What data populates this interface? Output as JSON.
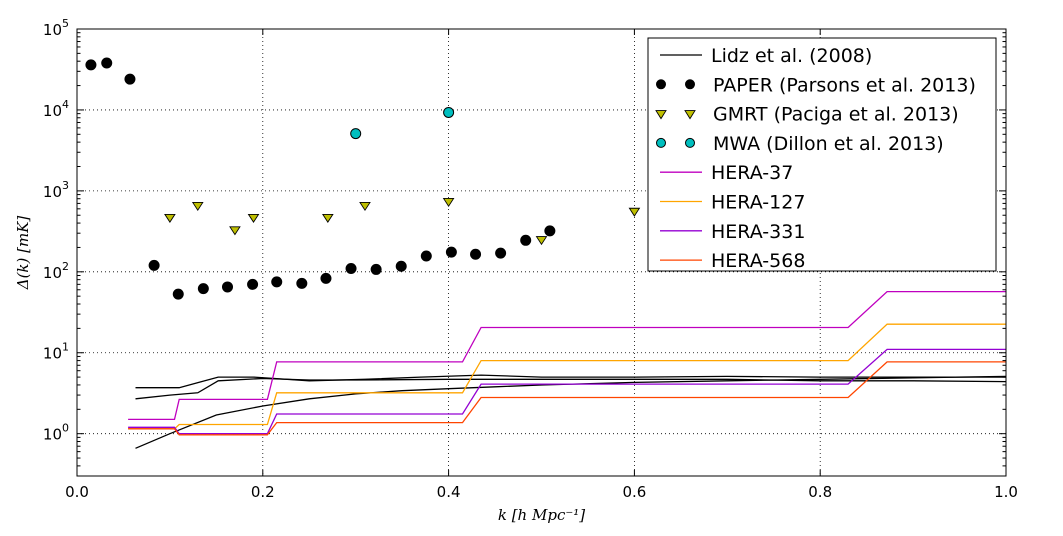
{
  "chart_data": {
    "type": "line",
    "title": "",
    "xlabel": "k [h Mpc⁻¹]",
    "ylabel": "Δ(k) [mK]",
    "xlim": [
      0.0,
      1.0
    ],
    "ylim": [
      0.3,
      100000
    ],
    "y_scale": "log",
    "grid": true,
    "legend_position": "top-right",
    "x_tick_labels": [
      "0.0",
      "0.2",
      "0.4",
      "0.6",
      "0.8",
      "1.0"
    ],
    "x_tick_values": [
      0.0,
      0.2,
      0.4,
      0.6,
      0.8,
      1.0
    ],
    "y_tick_values": [
      1,
      10,
      100,
      1000,
      10000,
      100000
    ],
    "y_tick_labels": [
      {
        "base": "10",
        "exp": "0"
      },
      {
        "base": "10",
        "exp": "1"
      },
      {
        "base": "10",
        "exp": "2"
      },
      {
        "base": "10",
        "exp": "3"
      },
      {
        "base": "10",
        "exp": "4"
      },
      {
        "base": "10",
        "exp": "5"
      }
    ],
    "series": [
      {
        "name": "Lidz et al. (2008)",
        "kind": "line",
        "color": "#000000",
        "lines": [
          {
            "x": [
              0.063,
              0.11,
              0.152,
              0.19,
              0.25,
              0.31,
              0.37,
              0.435,
              0.5,
              0.6,
              0.7,
              0.8,
              0.9,
              1.0
            ],
            "y": [
              3.7,
              3.7,
              5.0,
              5.0,
              4.5,
              4.7,
              5.0,
              5.3,
              5.0,
              5.0,
              5.1,
              5.0,
              5.0,
              5.0
            ]
          },
          {
            "x": [
              0.063,
              0.1,
              0.13,
              0.152,
              0.2,
              0.25,
              0.3,
              0.4,
              0.5,
              0.6,
              0.7,
              0.8,
              0.9,
              1.0
            ],
            "y": [
              2.7,
              3.0,
              3.2,
              4.5,
              4.8,
              4.6,
              4.6,
              4.7,
              4.7,
              4.7,
              4.7,
              4.5,
              4.5,
              4.4
            ]
          },
          {
            "x": [
              0.063,
              0.1,
              0.15,
              0.2,
              0.25,
              0.3,
              0.35,
              0.4,
              0.45,
              0.5,
              0.6,
              0.7,
              0.8,
              0.9,
              1.0
            ],
            "y": [
              0.66,
              1.0,
              1.7,
              2.2,
              2.7,
              3.1,
              3.4,
              3.6,
              3.8,
              4.0,
              4.3,
              4.5,
              4.7,
              4.9,
              5.1
            ]
          }
        ]
      },
      {
        "name": "PAPER (Parsons et al. 2013)",
        "kind": "points",
        "marker": "circle",
        "color": "#000000",
        "x": [
          0.015,
          0.032,
          0.057,
          0.083,
          0.109,
          0.136,
          0.162,
          0.189,
          0.215,
          0.242,
          0.268,
          0.295,
          0.322,
          0.349,
          0.376,
          0.403,
          0.429,
          0.456,
          0.483,
          0.509
        ],
        "y": [
          36000,
          38000,
          24000,
          120,
          53,
          62,
          65,
          70,
          75,
          72,
          83,
          110,
          107,
          117,
          157,
          175,
          165,
          170,
          245,
          320
        ]
      },
      {
        "name": "GMRT (Paciga et al. 2013)",
        "kind": "points",
        "marker": "triangle-down",
        "color": "#bfbf00",
        "x": [
          0.1,
          0.13,
          0.17,
          0.19,
          0.27,
          0.31,
          0.4,
          0.5,
          0.6
        ],
        "y": [
          470,
          660,
          330,
          470,
          470,
          660,
          740,
          250,
          560
        ]
      },
      {
        "name": "MWA (Dillon et al. 2013)",
        "kind": "points",
        "marker": "circle",
        "color": "#00bfbf",
        "x": [
          0.3,
          0.4
        ],
        "y": [
          5100,
          9300
        ]
      },
      {
        "name": "HERA-37",
        "kind": "line",
        "color": "#bf00bf",
        "x": [
          0.055,
          0.105,
          0.11,
          0.205,
          0.215,
          0.415,
          0.435,
          0.83,
          0.872,
          1.0
        ],
        "y": [
          1.5,
          1.5,
          2.65,
          2.65,
          7.7,
          7.7,
          20.5,
          20.5,
          57,
          57
        ]
      },
      {
        "name": "HERA-127",
        "kind": "line",
        "color": "#ffa500",
        "x": [
          0.055,
          0.105,
          0.11,
          0.205,
          0.215,
          0.415,
          0.435,
          0.83,
          0.872,
          1.0
        ],
        "y": [
          1.15,
          1.15,
          1.3,
          1.3,
          3.2,
          3.2,
          8.0,
          8.0,
          22.5,
          22.5
        ]
      },
      {
        "name": "HERA-331",
        "kind": "line",
        "color": "#9400d3",
        "x": [
          0.055,
          0.105,
          0.11,
          0.205,
          0.215,
          0.415,
          0.435,
          0.83,
          0.872,
          1.0
        ],
        "y": [
          1.2,
          1.2,
          1.0,
          1.0,
          1.75,
          1.75,
          4.1,
          4.1,
          11.0,
          11.0
        ]
      },
      {
        "name": "HERA-568",
        "kind": "line",
        "color": "#ff4500",
        "x": [
          0.055,
          0.105,
          0.11,
          0.205,
          0.215,
          0.415,
          0.435,
          0.83,
          0.872,
          1.0
        ],
        "y": [
          1.15,
          1.15,
          0.97,
          0.97,
          1.37,
          1.37,
          2.8,
          2.8,
          7.7,
          7.7
        ]
      }
    ]
  }
}
